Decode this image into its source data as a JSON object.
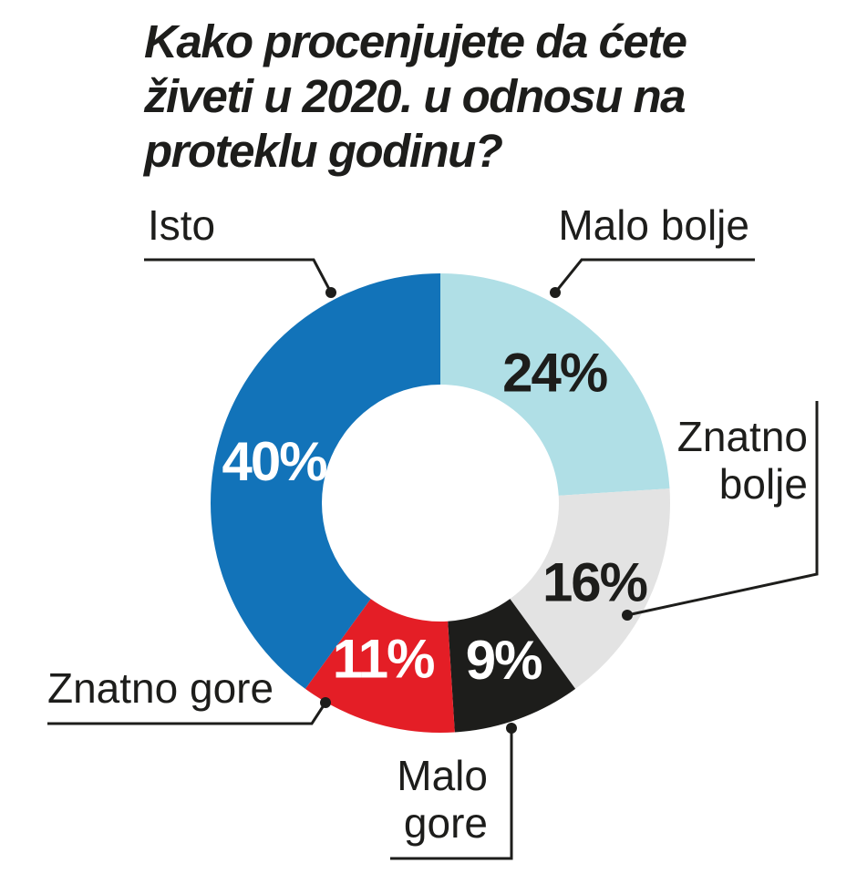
{
  "title": "Kako procenjujete da ćete živeti u 2020. u odnosu na proteklu godinu?",
  "chart_data": {
    "type": "pie",
    "variant": "donut",
    "title": "Kako procenjujete da ćete živeti u 2020. u odnosu na proteklu godinu?",
    "unit": "%",
    "slices": [
      {
        "label": "Malo bolje",
        "value": 24,
        "value_label": "24%",
        "color": "#b0dfe6",
        "text_color": "#1d1d1b"
      },
      {
        "label": "Znatno bolje",
        "value": 16,
        "value_label": "16%",
        "color": "#e3e3e3",
        "text_color": "#1d1d1b"
      },
      {
        "label": "Malo gore",
        "value": 9,
        "value_label": "9%",
        "color": "#1d1d1b",
        "text_color": "#ffffff"
      },
      {
        "label": "Znatno gore",
        "value": 11,
        "value_label": "11%",
        "color": "#e41e26",
        "text_color": "#ffffff"
      },
      {
        "label": "Isto",
        "value": 40,
        "value_label": "40%",
        "color": "#1273b9",
        "text_color": "#ffffff"
      }
    ],
    "legend": "callout labels"
  }
}
